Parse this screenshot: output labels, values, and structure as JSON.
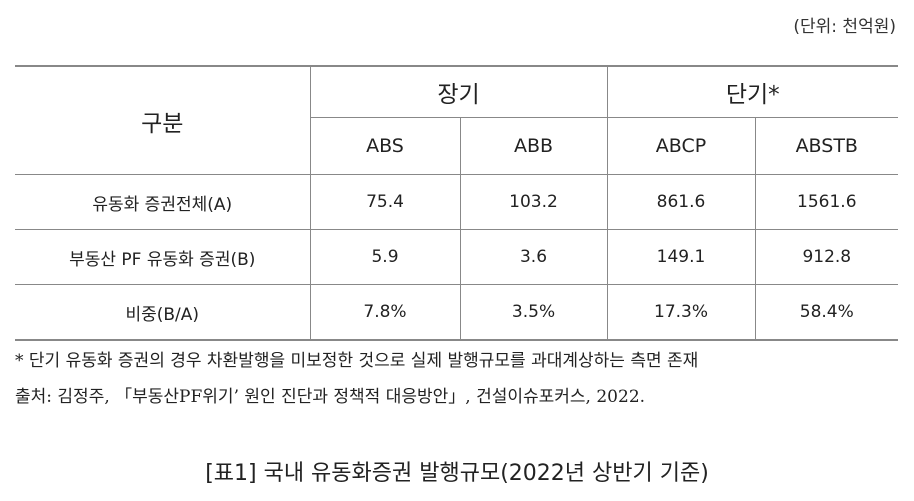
{
  "unit": "(단위: 천억원)",
  "table": {
    "corner": "구분",
    "groups": [
      "장기",
      "단기*"
    ],
    "columns": [
      "ABS",
      "ABB",
      "ABCP",
      "ABSTB"
    ],
    "rows": [
      [
        "유동화 증권전체(A)",
        "75.4",
        "103.2",
        "861.6",
        "1561.6"
      ],
      [
        "부동산 PF 유동화 증권(B)",
        "5.9",
        "3.6",
        "149.1",
        "912.8"
      ],
      [
        "비중(B/A)",
        "7.8%",
        "3.5%",
        "17.3%",
        "58.4%"
      ]
    ]
  },
  "notes": [
    "* 단기 유동화 증권의 경우 차환발행을 미보정한 것으로 실제 발행규모를 과대계상하는 측면 존재",
    "출처: 김정주, 「부동산PF위기’ 원인 진단과 정책적 대응방안」, 건설이슈포커스, 2022."
  ],
  "caption": "[표1] 국내 유동화증권 발행규모(2022년 상반기 기준)"
}
